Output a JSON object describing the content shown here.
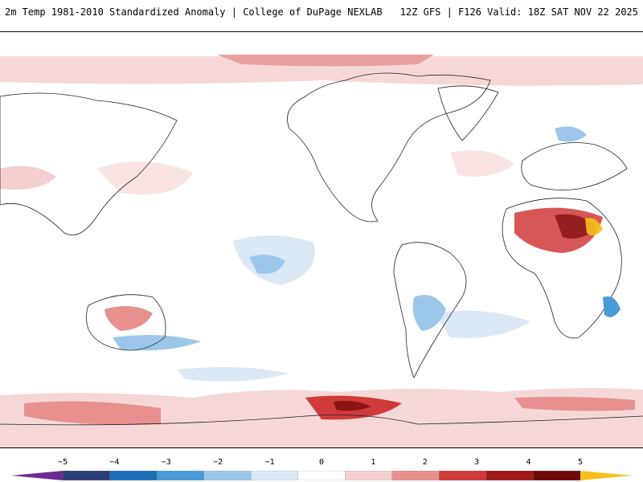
{
  "header": {
    "title": "2m Temp 1981-2010 Standardized Anomaly | College of DuPage NEXLAB",
    "model_info": "12Z GFS | F126 Valid: 18Z SAT NOV 22 2025"
  },
  "colorbar": {
    "ticks": [
      "−5",
      "−4",
      "−3",
      "−2",
      "−1",
      "0",
      "1",
      "2",
      "3",
      "4",
      "5"
    ],
    "colors": [
      "#6a2c91",
      "#2c3e7a",
      "#1f6fb8",
      "#4a9ad6",
      "#9cc7ea",
      "#dbe8f6",
      "#ffffff",
      "#f4cfcf",
      "#e89090",
      "#d03a3a",
      "#a01a1a",
      "#6f0a0a",
      "#f5c11a"
    ]
  },
  "map": {
    "regions": [
      "North America",
      "South America",
      "Africa",
      "Europe",
      "Asia",
      "Australia",
      "Antarctica"
    ]
  }
}
